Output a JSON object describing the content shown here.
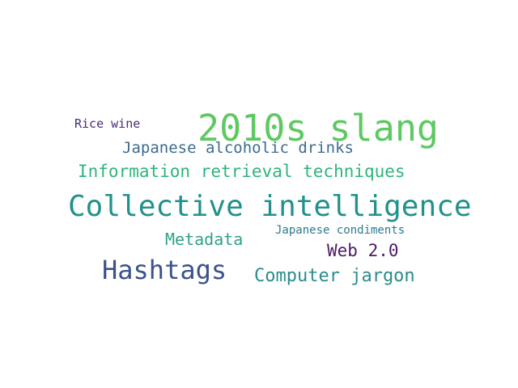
{
  "word_cloud": {
    "words": [
      {
        "text": "2010s slang",
        "color": "#5ec962"
      },
      {
        "text": "Collective intelligence",
        "color": "#21918c"
      },
      {
        "text": "Hashtags",
        "color": "#3b528b"
      },
      {
        "text": "Information retrieval techniques",
        "color": "#2fb47c"
      },
      {
        "text": "Japanese alcoholic drinks",
        "color": "#3e6b8e"
      },
      {
        "text": "Metadata",
        "color": "#2ea28a"
      },
      {
        "text": "Web 2.0",
        "color": "#4d1a63"
      },
      {
        "text": "Computer jargon",
        "color": "#2a8c8c"
      },
      {
        "text": "Rice wine",
        "color": "#472c7a"
      },
      {
        "text": "Japanese condiments",
        "color": "#2a7a90"
      }
    ]
  }
}
